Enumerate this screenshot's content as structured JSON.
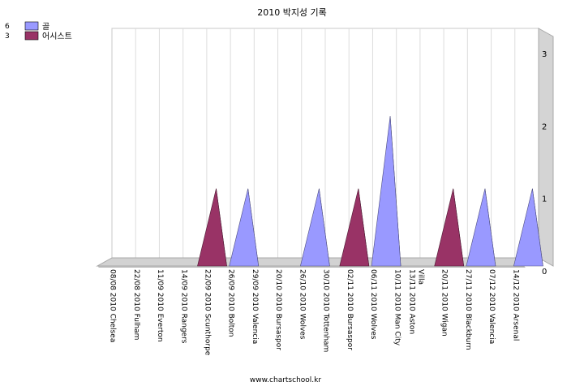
{
  "chart_data": {
    "type": "3d-cone",
    "title": "2010 박지성 기록",
    "footer": "www.chartschool.kr",
    "categories": [
      "08/08 2010 Chelsea",
      "22/08 2010 Fulham",
      "11/09 2010 Everton",
      "14/09 2010 Rangers",
      "22/09 2010 Scunthorpe",
      "26/09 2010 Bolton",
      "29/09 2010 Valencia",
      "20/10 2010 Bursaspor",
      "26/10 2010 Wolves",
      "30/10 2010 Tottenham",
      "02/11 2010 Bursaspor",
      "06/11 2010 Wolves",
      "10/11 2010 Man City",
      "13/11 2010 Aston Villa",
      "20/11 2010 Wigan",
      "27/11 2010 Blackburn",
      "07/12 2010 Valencia",
      "14/12 2010 Arsenal"
    ],
    "series": [
      {
        "name": "골",
        "total": "6",
        "color": "#9999ff",
        "values": [
          0,
          0,
          0,
          0,
          0,
          1,
          0,
          0,
          1,
          0,
          0,
          2,
          0,
          0,
          0,
          1,
          0,
          1
        ]
      },
      {
        "name": "어시스트",
        "total": "3",
        "color": "#993366",
        "values": [
          0,
          0,
          0,
          0,
          1,
          0,
          0,
          0,
          0,
          0,
          1,
          0,
          0,
          0,
          1,
          0,
          0,
          0
        ]
      }
    ],
    "yticks": [
      "0",
      "1",
      "2",
      "3"
    ],
    "ylim": [
      0,
      3
    ],
    "legend_position": "top-left",
    "grid": true
  }
}
